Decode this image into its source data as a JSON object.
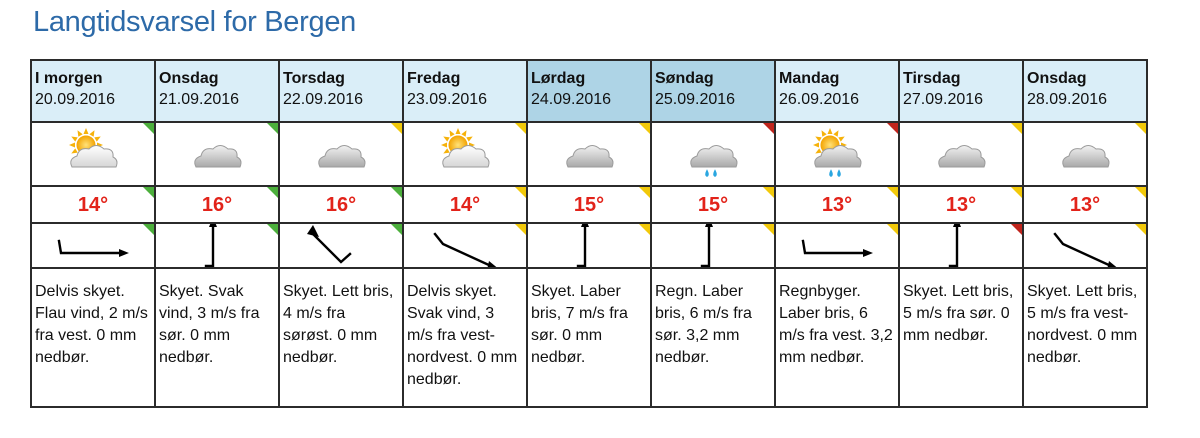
{
  "title": "Langtidsvarsel for Bergen",
  "colors": {
    "title": "#2d6aa8",
    "header_bg": "#daeef8",
    "header_bg_weekend": "#aed4e6",
    "temperature": "#e2231a",
    "quality_green": "#4caf3c",
    "quality_yellow": "#f2c90a",
    "quality_red": "#c0241c"
  },
  "days": [
    {
      "day": "I morgen",
      "date": "20.09.2016",
      "temp": "14°",
      "icon": "partly-cloudy-icon",
      "wind_dir": "vest",
      "description": "Delvis skyet. Flau vind, 2 m/s fra vest. 0 mm nedbør.",
      "weekend": false,
      "q_icon": "green",
      "q_temp": "green",
      "q_wind": "green"
    },
    {
      "day": "Onsdag",
      "date": "21.09.2016",
      "temp": "16°",
      "icon": "cloud-icon",
      "wind_dir": "sør",
      "description": "Skyet. Svak vind, 3 m/s fra sør. 0 mm nedbør.",
      "weekend": false,
      "q_icon": "green",
      "q_temp": "green",
      "q_wind": "green"
    },
    {
      "day": "Torsdag",
      "date": "22.09.2016",
      "temp": "16°",
      "icon": "cloud-icon",
      "wind_dir": "sørøst",
      "description": "Skyet. Lett bris, 4 m/s fra sørøst. 0 mm nedbør.",
      "weekend": false,
      "q_icon": "yellow",
      "q_temp": "green",
      "q_wind": "green"
    },
    {
      "day": "Fredag",
      "date": "23.09.2016",
      "temp": "14°",
      "icon": "partly-cloudy-icon",
      "wind_dir": "vest-nordvest",
      "description": "Delvis skyet. Svak vind, 3 m/s fra vest-nordvest. 0 mm nedbør.",
      "weekend": false,
      "q_icon": "yellow",
      "q_temp": "yellow",
      "q_wind": "yellow"
    },
    {
      "day": "Lørdag",
      "date": "24.09.2016",
      "temp": "15°",
      "icon": "cloud-icon",
      "wind_dir": "sør",
      "description": "Skyet. Laber bris, 7 m/s fra sør. 0 mm nedbør.",
      "weekend": true,
      "q_icon": "yellow",
      "q_temp": "yellow",
      "q_wind": "yellow"
    },
    {
      "day": "Søndag",
      "date": "25.09.2016",
      "temp": "15°",
      "icon": "rain-cloud-icon",
      "wind_dir": "sør",
      "description": "Regn. Laber bris, 6 m/s fra sør. 3,2 mm nedbør.",
      "weekend": true,
      "q_icon": "red",
      "q_temp": "yellow",
      "q_wind": "yellow"
    },
    {
      "day": "Mandag",
      "date": "26.09.2016",
      "temp": "13°",
      "icon": "rain-showers-icon",
      "wind_dir": "vest",
      "description": "Regnbyger. Laber bris, 6 m/s fra vest. 3,2 mm nedbør.",
      "weekend": false,
      "q_icon": "red",
      "q_temp": "yellow",
      "q_wind": "yellow"
    },
    {
      "day": "Tirsdag",
      "date": "27.09.2016",
      "temp": "13°",
      "icon": "cloud-icon",
      "wind_dir": "sør",
      "description": "Skyet. Lett bris, 5 m/s fra sør. 0 mm nedbør.",
      "weekend": false,
      "q_icon": "yellow",
      "q_temp": "yellow",
      "q_wind": "red"
    },
    {
      "day": "Onsdag",
      "date": "28.09.2016",
      "temp": "13°",
      "icon": "cloud-icon",
      "wind_dir": "vest-nordvest",
      "description": "Skyet. Lett bris, 5 m/s fra vest-nordvest. 0 mm nedbør.",
      "weekend": false,
      "q_icon": "yellow",
      "q_temp": "yellow",
      "q_wind": "yellow"
    }
  ]
}
